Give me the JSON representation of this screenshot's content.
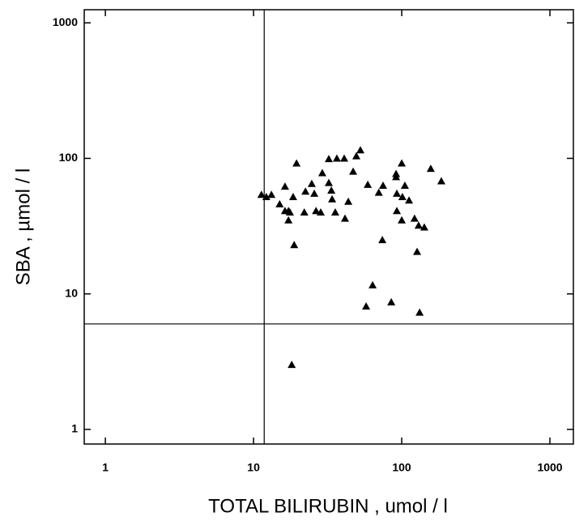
{
  "chart_data": {
    "type": "scatter",
    "x_label": "TOTAL  BILIRUBIN , umol / l",
    "y_label": "SBA , µmol / l",
    "x": [
      11.3,
      12.2,
      13.2,
      15,
      16.3,
      16.3,
      17.2,
      17.2,
      17.6,
      18.5,
      19.5,
      18.8,
      18.1,
      22,
      22.4,
      24.7,
      25.7,
      26.4,
      28.4,
      29.1,
      32.2,
      32.2,
      33.5,
      33.9,
      35.6,
      36.5,
      40.9,
      41.4,
      43.6,
      47,
      49.4,
      52.6,
      59,
      57.5,
      63.6,
      70,
      74.8,
      74,
      85,
      91.6,
      91.6,
      92.7,
      92.7,
      100,
      100,
      101,
      105,
      112,
      122,
      130,
      127,
      132,
      142,
      157,
      185
    ],
    "values": [
      54,
      52,
      54,
      46,
      62,
      41,
      41,
      35,
      40,
      52,
      92,
      23,
      3,
      40,
      57,
      65,
      55,
      41,
      40,
      78,
      99,
      66,
      58,
      50,
      40,
      100,
      100,
      36,
      48,
      80,
      104,
      115,
      64,
      8.1,
      11.6,
      56,
      63,
      25,
      8.7,
      77,
      73,
      55,
      41,
      92,
      35,
      52,
      63,
      49,
      36,
      32,
      20.5,
      7.3,
      31,
      84,
      68
    ],
    "color": "#000000",
    "xscale": "log",
    "yscale": "log",
    "xlim": [
      0.72,
      1440
    ],
    "ylim": [
      0.78,
      1250
    ],
    "xticks": [
      1,
      10,
      100,
      1000
    ],
    "yticks": [
      1,
      10,
      100,
      1000
    ],
    "vlines": [
      11.8
    ],
    "hlines": [
      6
    ]
  }
}
